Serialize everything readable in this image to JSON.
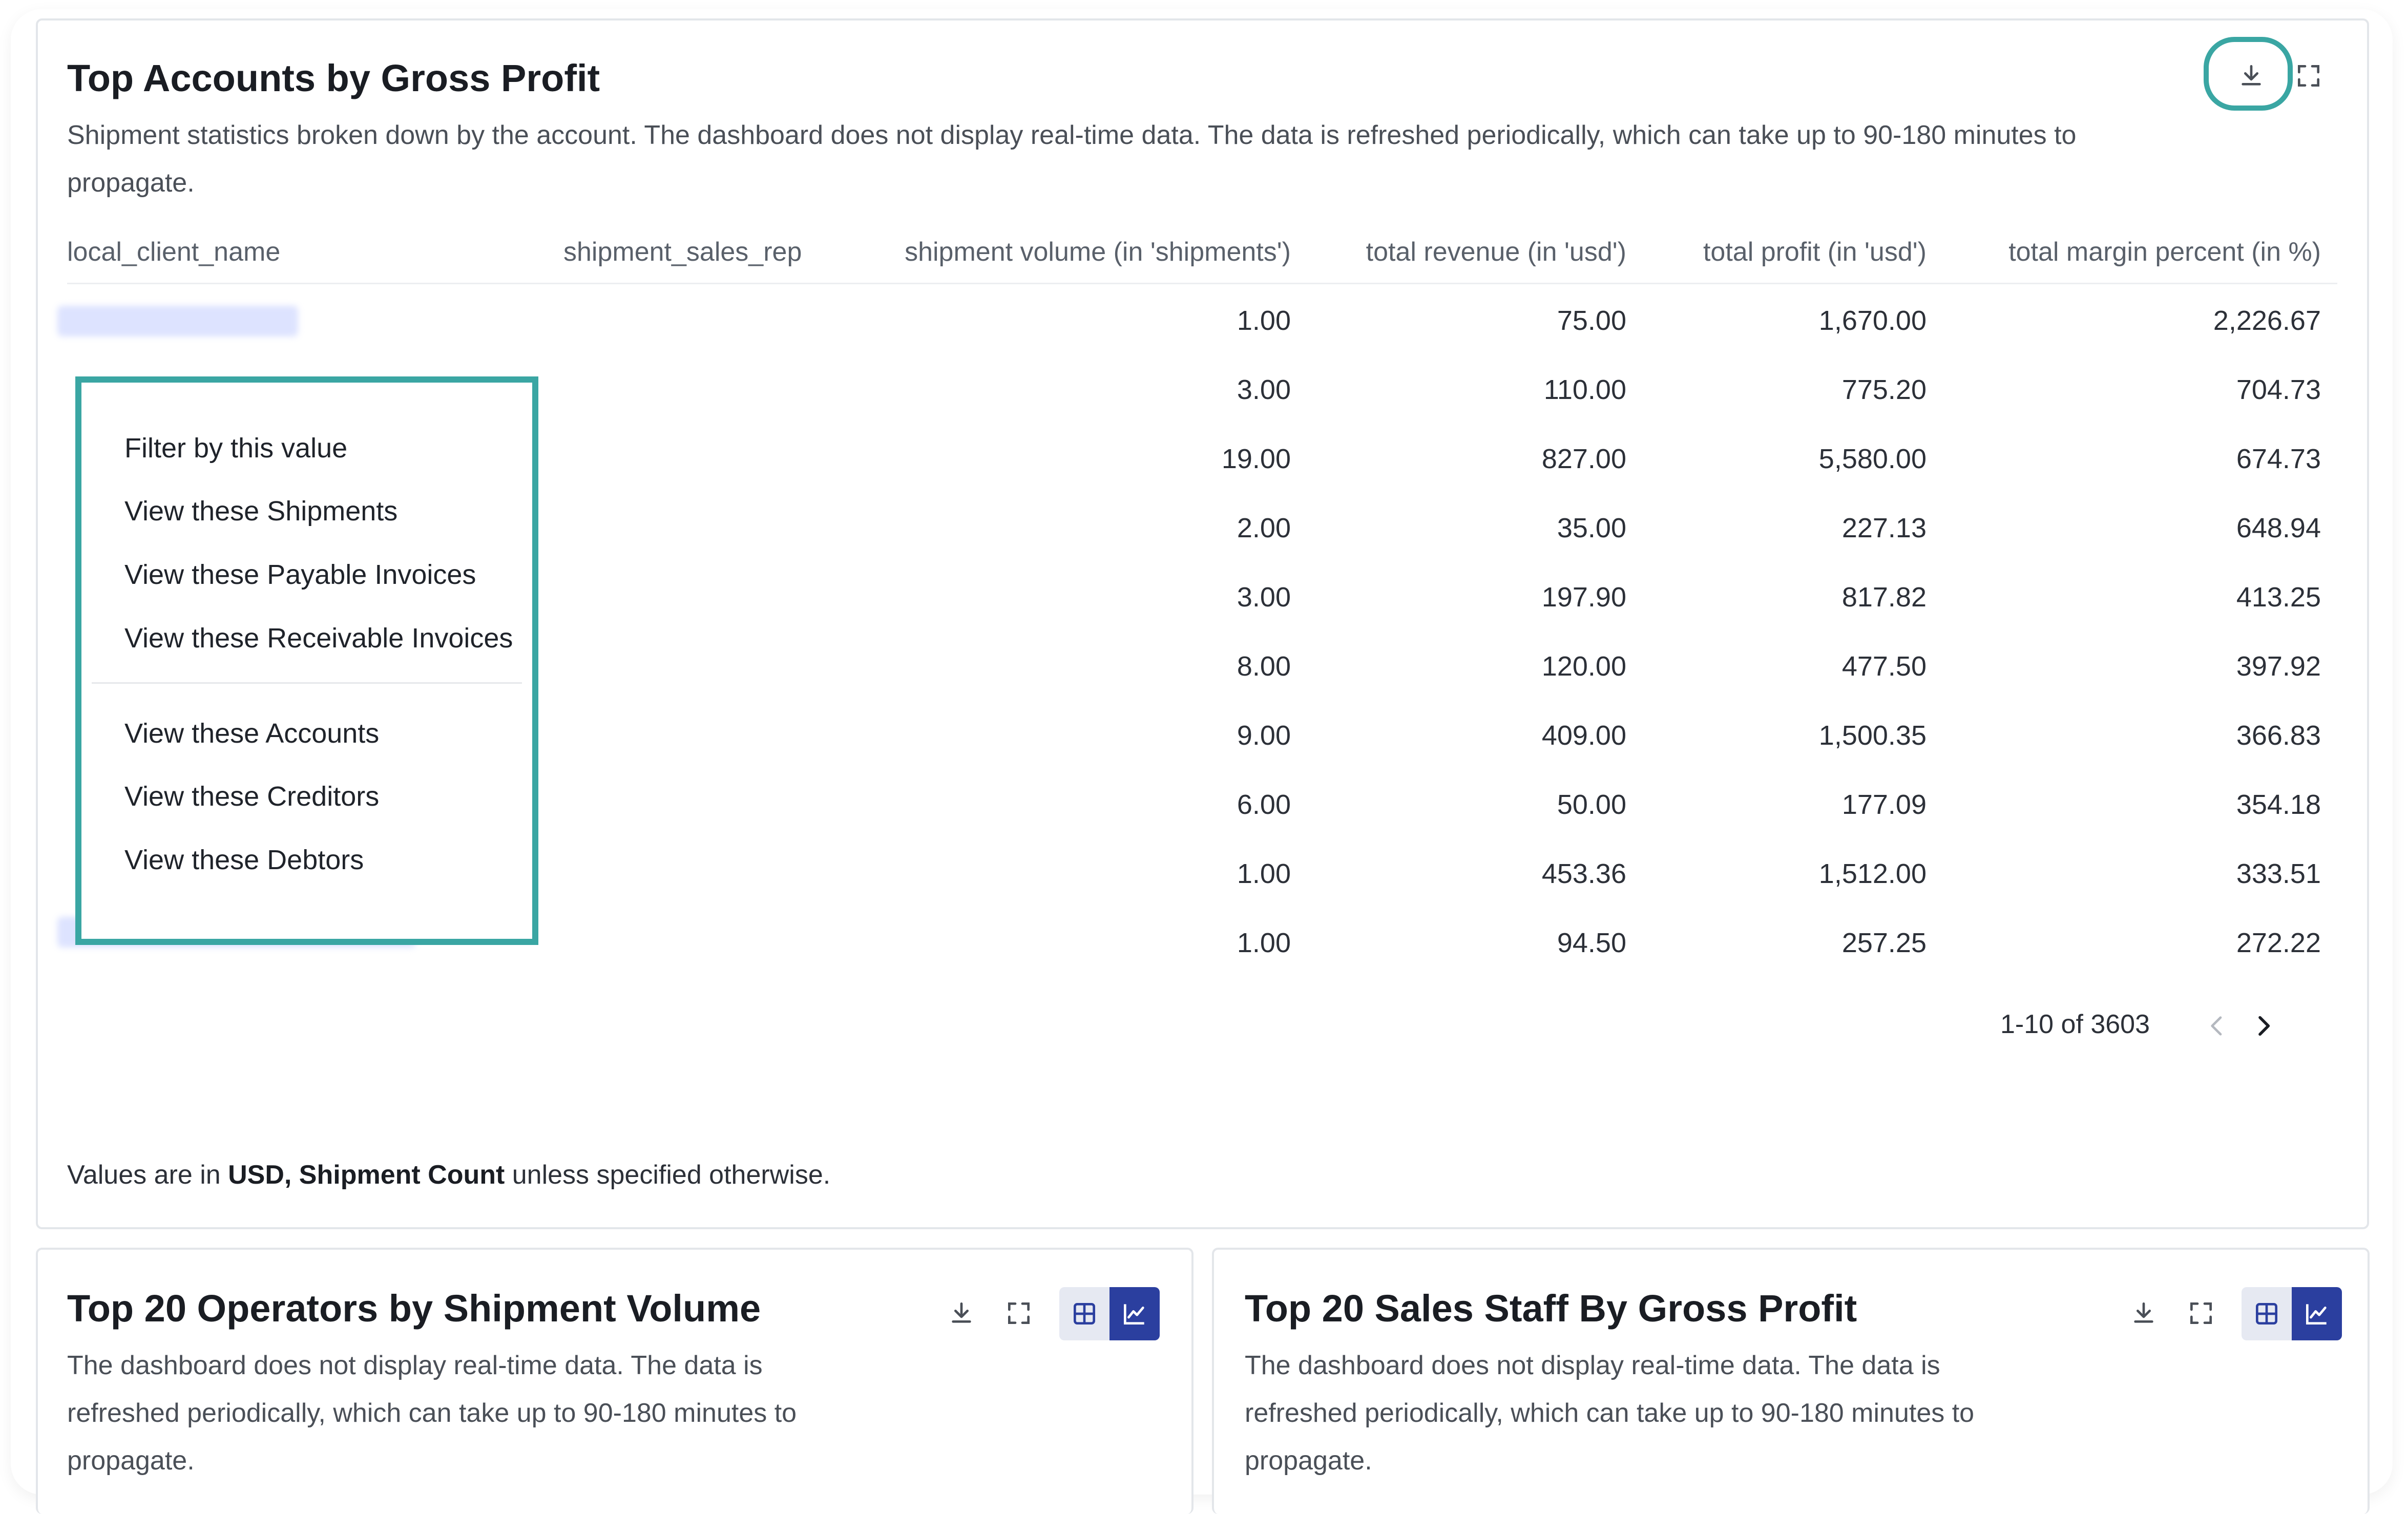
{
  "main_card": {
    "title": "Top Accounts by Gross Profit",
    "description": "Shipment statistics broken down by the account. The dashboard does not display real-time data. The data is refreshed periodically, which can take up to 90-180 minutes to propagate.",
    "columns": [
      "local_client_name",
      "shipment_sales_rep",
      "shipment volume (in 'shipments')",
      "total revenue (in 'usd')",
      "total profit (in 'usd')",
      "total margin percent (in %)"
    ],
    "rows": [
      [
        "1.00",
        "75.00",
        "1,670.00",
        "2,226.67"
      ],
      [
        "3.00",
        "110.00",
        "775.20",
        "704.73"
      ],
      [
        "19.00",
        "827.00",
        "5,580.00",
        "674.73"
      ],
      [
        "2.00",
        "35.00",
        "227.13",
        "648.94"
      ],
      [
        "3.00",
        "197.90",
        "817.82",
        "413.25"
      ],
      [
        "8.00",
        "120.00",
        "477.50",
        "397.92"
      ],
      [
        "9.00",
        "409.00",
        "1,500.35",
        "366.83"
      ],
      [
        "6.00",
        "50.00",
        "177.09",
        "354.18"
      ],
      [
        "1.00",
        "453.36",
        "1,512.00",
        "333.51"
      ],
      [
        "1.00",
        "94.50",
        "257.25",
        "272.22"
      ]
    ],
    "pagination": "1-10 of 3603",
    "footer_prefix": "Values are in ",
    "footer_bold": "USD, Shipment Count",
    "footer_suffix": " unless specified otherwise."
  },
  "context_menu": {
    "items": [
      "Filter by this value",
      "View these Shipments",
      "View these Payable Invoices",
      "View these Receivable Invoices"
    ],
    "items_2": [
      "View these Accounts",
      "View these Creditors",
      "View these Debtors"
    ]
  },
  "card_left": {
    "title": "Top 20 Operators by Shipment Volume",
    "description": "The dashboard does not display real-time data. The data is refreshed periodically, which can take up to 90-180 minutes to propagate."
  },
  "card_right": {
    "title": "Top 20 Sales Staff By Gross Profit",
    "description": "The dashboard does not display real-time data. The data is refreshed periodically, which can take up to 90-180 minutes to propagate."
  },
  "icons": [
    "download-icon",
    "fullscreen-icon",
    "table-view-icon",
    "chart-view-icon",
    "chevron-left-icon",
    "chevron-right-icon"
  ],
  "colors": {
    "highlight": "#3aa6a3",
    "toggle_active": "#2b3f9f",
    "blurred_name": "#dde3ff"
  }
}
